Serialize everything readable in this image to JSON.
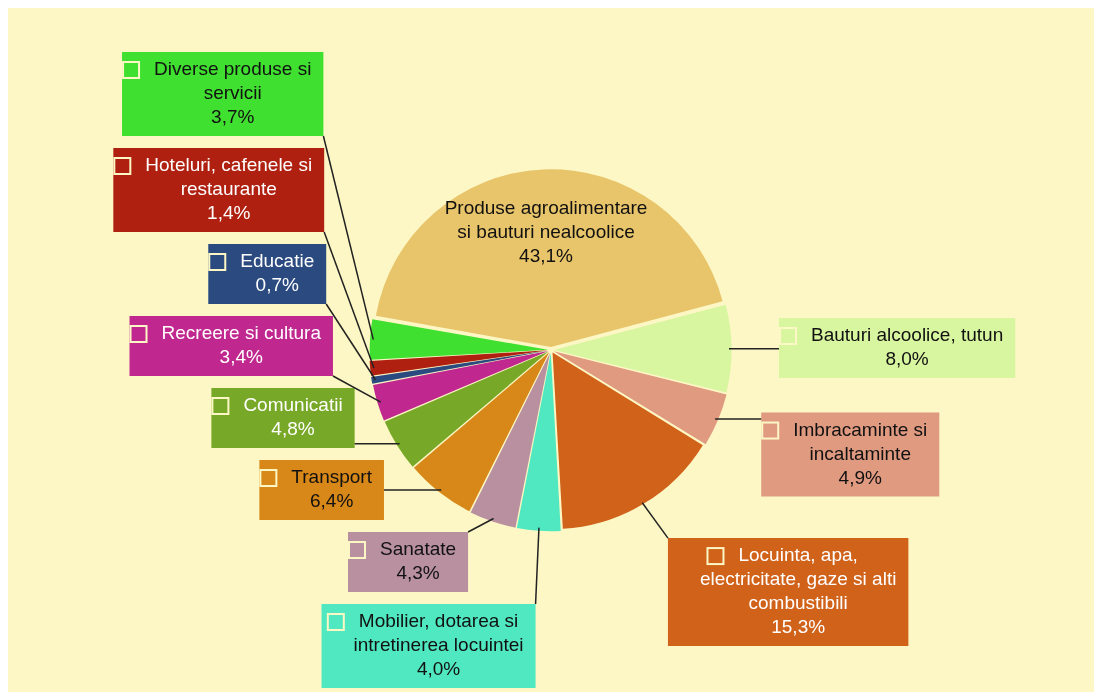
{
  "chart_data": {
    "type": "pie",
    "categories": [
      "Produse agroalimentare si bauturi nealcoolice",
      "Bauturi alcoolice, tutun",
      "Imbracaminte si incaltaminte",
      "Locuinta, apa, electricitate, gaze si alti combustibili",
      "Mobilier, dotarea si intretinerea locuintei",
      "Sanatate",
      "Transport",
      "Comunicatii",
      "Recreere si cultura",
      "Educatie",
      "Hoteluri, cafenele si restaurante",
      "Diverse produse si servicii"
    ],
    "values": [
      43.1,
      8.0,
      4.9,
      15.3,
      4.0,
      4.3,
      6.4,
      4.8,
      3.4,
      0.7,
      1.4,
      3.7
    ],
    "value_labels": [
      "43,1%",
      "8,0%",
      "4,9%",
      "15,3%",
      "4,0%",
      "4,3%",
      "6,4%",
      "4,8%",
      "3,4%",
      "0,7%",
      "1,4%",
      "3,7%"
    ],
    "colors": [
      "#e8c46a",
      "#d8f5a0",
      "#e09a80",
      "#d0621a",
      "#50e8c0",
      "#b890a0",
      "#d88818",
      "#78a828",
      "#c02890",
      "#2a4a80",
      "#b02010",
      "#40e030"
    ],
    "legend": "left"
  }
}
